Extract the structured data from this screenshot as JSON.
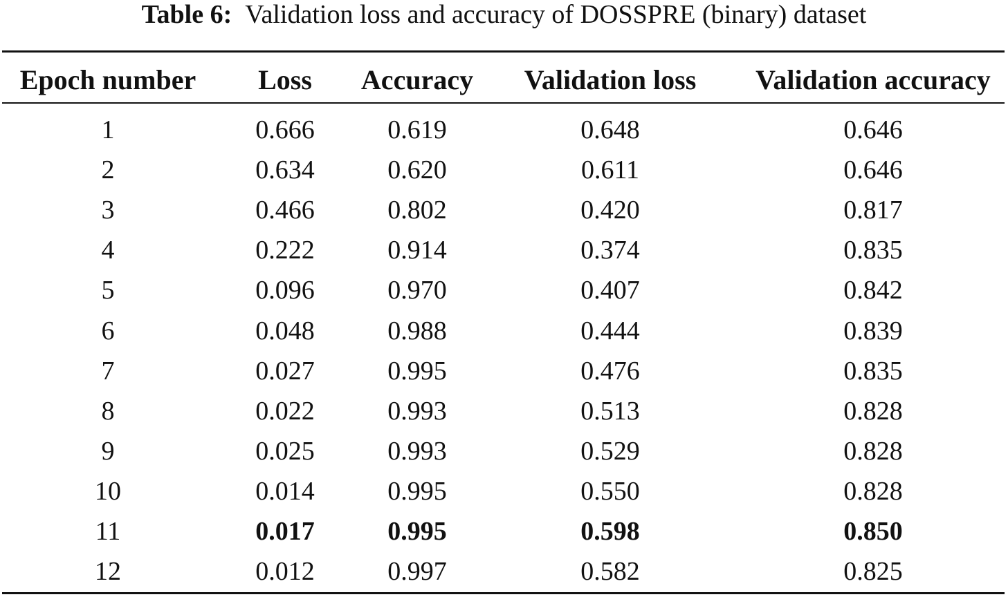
{
  "caption": {
    "label": "Table 6:",
    "text": "Validation loss and accuracy of DOSSPRE (binary) dataset"
  },
  "table": {
    "headers": [
      "Epoch number",
      "Loss",
      "Accuracy",
      "Validation loss",
      "Validation accuracy"
    ],
    "rows": [
      [
        "1",
        "0.666",
        "0.619",
        "0.648",
        "0.646"
      ],
      [
        "2",
        "0.634",
        "0.620",
        "0.611",
        "0.646"
      ],
      [
        "3",
        "0.466",
        "0.802",
        "0.420",
        "0.817"
      ],
      [
        "4",
        "0.222",
        "0.914",
        "0.374",
        "0.835"
      ],
      [
        "5",
        "0.096",
        "0.970",
        "0.407",
        "0.842"
      ],
      [
        "6",
        "0.048",
        "0.988",
        "0.444",
        "0.839"
      ],
      [
        "7",
        "0.027",
        "0.995",
        "0.476",
        "0.835"
      ],
      [
        "8",
        "0.022",
        "0.993",
        "0.513",
        "0.828"
      ],
      [
        "9",
        "0.025",
        "0.993",
        "0.529",
        "0.828"
      ],
      [
        "10",
        "0.014",
        "0.995",
        "0.550",
        "0.828"
      ],
      [
        "11",
        "0.017",
        "0.995",
        "0.598",
        "0.850"
      ],
      [
        "12",
        "0.012",
        "0.997",
        "0.582",
        "0.825"
      ]
    ],
    "bold_row_epoch": "11"
  }
}
